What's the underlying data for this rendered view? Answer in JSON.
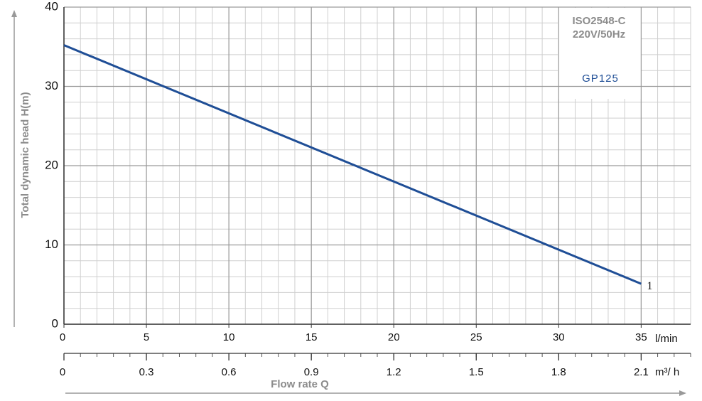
{
  "chart_data": {
    "type": "line",
    "y_label": "Total dynamic head H(m)",
    "x_label": "Flow rate Q",
    "x_unit": "l/min",
    "x2_unit": "m³/ h",
    "annotations": [
      "ISO2548-C",
      "220V/50Hz"
    ],
    "model": "GP125",
    "x": [
      0,
      35
    ],
    "series": [
      {
        "name": "1",
        "color": "#1f4e96",
        "values": [
          35.2,
          5.1
        ]
      }
    ],
    "xlim": [
      0,
      38
    ],
    "xticks": [
      0,
      5,
      10,
      15,
      20,
      25,
      30,
      35
    ],
    "x2lim": [
      0,
      2.28
    ],
    "x2ticks": [
      0,
      0.3,
      0.6,
      0.9,
      1.2,
      1.5,
      1.8,
      2.1
    ],
    "ylim": [
      0,
      40
    ],
    "yticks": [
      0,
      10,
      20,
      30,
      40
    ],
    "grid": true
  }
}
